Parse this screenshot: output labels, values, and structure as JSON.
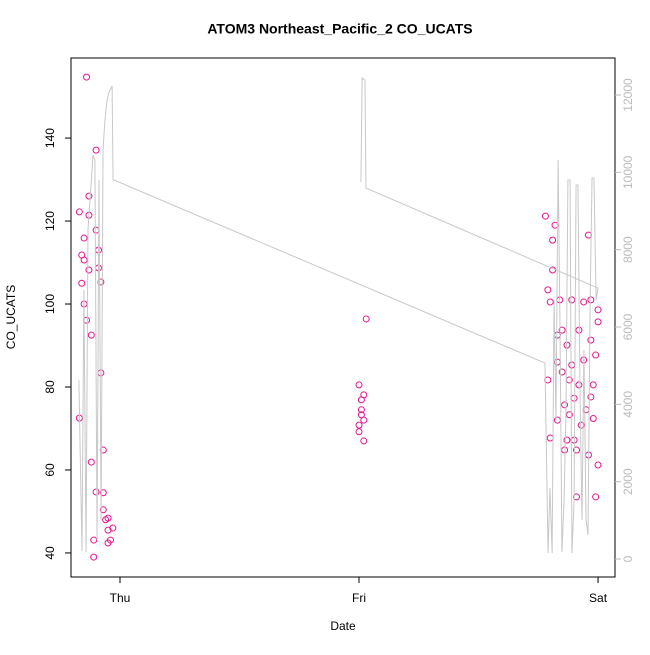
{
  "chart_data": {
    "type": "scatter",
    "title": "ATOM3 Northeast_Pacific_2 CO_UCATS",
    "xlabel": "Date",
    "ylabel": "CO_UCATS",
    "xlim": [
      -0.205,
      2.071
    ],
    "xticks": [
      {
        "value": 0,
        "label": "Thu"
      },
      {
        "value": 1,
        "label": "Fri"
      },
      {
        "value": 2,
        "label": "Sat"
      }
    ],
    "ylim": [
      34.2,
      159.3
    ],
    "yticks": [
      40,
      60,
      80,
      100,
      120,
      140
    ],
    "y2lim": [
      -465,
      12957
    ],
    "y2ticks": [
      0,
      2000,
      4000,
      6000,
      8000,
      10000,
      12000
    ],
    "series": [
      {
        "type": "scatter",
        "color": "#e3178f",
        "x": [
          -0.17,
          -0.17,
          -0.16,
          -0.16,
          -0.15,
          -0.15,
          -0.15,
          -0.14,
          -0.14,
          -0.13,
          -0.13,
          -0.13,
          -0.12,
          -0.12,
          -0.11,
          -0.11,
          -0.1,
          -0.1,
          -0.1,
          -0.09,
          -0.09,
          -0.08,
          -0.08,
          -0.07,
          -0.07,
          -0.07,
          -0.06,
          -0.05,
          -0.04,
          -0.03,
          -0.05,
          -0.05,
          1.0,
          1.01,
          1.01,
          1.0,
          1.02,
          1.02,
          1.03,
          1.01,
          1.02,
          1.0,
          1.78,
          1.79,
          1.79,
          1.8,
          1.8,
          1.81,
          1.81,
          1.82,
          1.83,
          1.83,
          1.84,
          1.85,
          1.85,
          1.86,
          1.86,
          1.87,
          1.87,
          1.88,
          1.88,
          1.89,
          1.89,
          1.9,
          1.91,
          1.91,
          1.92,
          1.92,
          1.93,
          1.94,
          1.94,
          1.95,
          1.96,
          1.96,
          1.97,
          1.97,
          1.98,
          1.98,
          1.99,
          1.99,
          2.0,
          2.0,
          2.0,
          1.83,
          1.9,
          1.97
        ],
        "values": [
          72.5,
          122.2,
          111.8,
          105,
          115.9,
          110.6,
          100,
          96.1,
          154.7,
          126,
          121.4,
          108.2,
          92.5,
          61.9,
          43.1,
          39,
          54.7,
          137.1,
          117.8,
          113,
          108.7,
          105.3,
          83.4,
          64.8,
          54.5,
          50.4,
          48,
          45.5,
          43.1,
          46,
          42.4,
          48.4,
          80.5,
          76.9,
          73.3,
          70.8,
          72,
          67,
          96.4,
          74.5,
          78.1,
          69.2,
          121.2,
          103.4,
          81.7,
          67.7,
          100.5,
          115.4,
          108.2,
          119,
          86,
          72,
          101,
          83.6,
          93.7,
          64.8,
          75.7,
          90.1,
          67.2,
          81.7,
          73.3,
          101,
          85.3,
          77.3,
          53.5,
          64.8,
          93.7,
          80.5,
          70.8,
          100.5,
          86.5,
          74.5,
          116.6,
          63.6,
          77.6,
          91.3,
          80.5,
          72.4,
          87.7,
          53.5,
          98.6,
          61.2,
          95.7,
          92.5,
          67.2,
          101
        ]
      },
      {
        "type": "line",
        "axis": "y2",
        "color": "#c8c8c8",
        "x": [
          -0.172,
          -0.159,
          -0.151,
          -0.142,
          -0.134,
          -0.121,
          -0.113,
          -0.105,
          -0.096,
          -0.088,
          -0.079,
          -0.071,
          -0.063,
          -0.054,
          -0.046,
          -0.033,
          -0.029,
          -0.025,
          1.778,
          1.791,
          1.799,
          1.808,
          1.816,
          1.824,
          1.833,
          1.841,
          1.849,
          1.858,
          1.866,
          1.874,
          1.883,
          1.891,
          1.9,
          1.908,
          1.916,
          1.925,
          1.933,
          1.941,
          1.95,
          1.958,
          1.967,
          1.975,
          1.983,
          1.992,
          2.0,
          1.029,
          1.025,
          1.013,
          1.008
        ],
        "values": [
          4630,
          207,
          6956,
          181,
          8508,
          9672,
          10447,
          10318,
          491,
          9801,
          1009,
          10577,
          11353,
          11870,
          12077,
          12232,
          9801,
          9801,
          5068,
          155,
          1836,
          155,
          6698,
          3594,
          10318,
          5922,
          181,
          1526,
          3853,
          9801,
          9801,
          155,
          1526,
          9672,
          9672,
          4112,
          1009,
          5405,
          1009,
          621,
          6698,
          9853,
          9853,
          6698,
          7008,
          9594,
          12387,
          12439,
          9749
        ]
      }
    ]
  }
}
